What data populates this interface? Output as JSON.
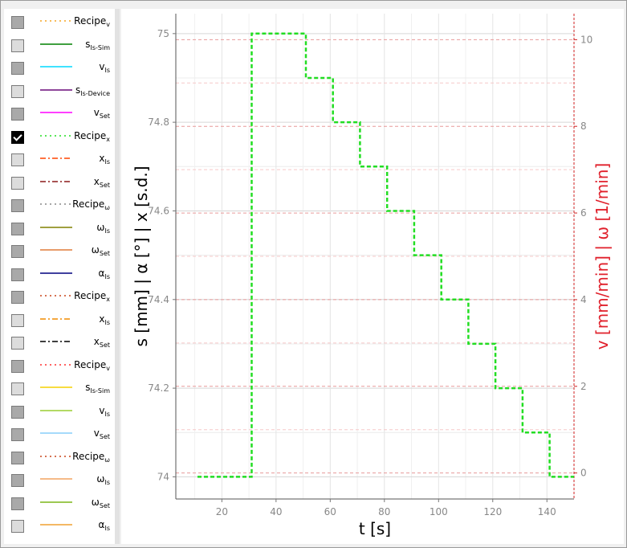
{
  "legend": {
    "items": [
      {
        "id": "recipe-v-1",
        "base": "Recipe",
        "sub": "v",
        "state": "dark",
        "color": "#f5a623",
        "dash": "dotted"
      },
      {
        "id": "s-is-sim-1",
        "base": "s",
        "sub": "Is-Sim",
        "state": "light",
        "color": "#008000",
        "dash": "solid"
      },
      {
        "id": "v-is-1",
        "base": "v",
        "sub": "Is",
        "state": "dark",
        "color": "#00d8ff",
        "dash": "solid"
      },
      {
        "id": "s-is-device",
        "base": "s",
        "sub": "Is-Device",
        "state": "light",
        "color": "#6a0a7a",
        "dash": "solid"
      },
      {
        "id": "v-set-1",
        "base": "v",
        "sub": "Set",
        "state": "dark",
        "color": "#ff00ff",
        "dash": "solid"
      },
      {
        "id": "recipe-x-1",
        "base": "Recipe",
        "sub": "x",
        "state": "checked",
        "color": "#22dd22",
        "dash": "dotted"
      },
      {
        "id": "x-is-1",
        "base": "x",
        "sub": "Is",
        "state": "light",
        "color": "#ff4500",
        "dash": "dashdot"
      },
      {
        "id": "x-set-1",
        "base": "x",
        "sub": "Set",
        "state": "light",
        "color": "#8b1a1a",
        "dash": "dashdot"
      },
      {
        "id": "recipe-w-1",
        "base": "Recipe",
        "sub": "ω",
        "state": "dark",
        "color": "#888888",
        "dash": "dotted"
      },
      {
        "id": "w-is-1",
        "base": "ω",
        "sub": "Is",
        "state": "dark",
        "color": "#808000",
        "dash": "solid"
      },
      {
        "id": "w-set-1",
        "base": "ω",
        "sub": "Set",
        "state": "dark",
        "color": "#e07b39",
        "dash": "solid"
      },
      {
        "id": "a-is-1",
        "base": "α",
        "sub": "Is",
        "state": "dark",
        "color": "#00007f",
        "dash": "solid"
      },
      {
        "id": "recipe-x-2",
        "base": "Recipe",
        "sub": "x",
        "state": "dark",
        "color": "#c8441a",
        "dash": "dotted"
      },
      {
        "id": "x-is-2",
        "base": "x",
        "sub": "Is",
        "state": "light",
        "color": "#f08c00",
        "dash": "dashdot"
      },
      {
        "id": "x-set-2",
        "base": "x",
        "sub": "Set",
        "state": "light",
        "color": "#000000",
        "dash": "dashdot"
      },
      {
        "id": "recipe-v-2",
        "base": "Recipe",
        "sub": "v",
        "state": "dark",
        "color": "#ff3030",
        "dash": "dotted"
      },
      {
        "id": "s-is-sim-2",
        "base": "s",
        "sub": "Is-Sim",
        "state": "light",
        "color": "#f5d000",
        "dash": "solid"
      },
      {
        "id": "v-is-2",
        "base": "v",
        "sub": "Is",
        "state": "dark",
        "color": "#9acd32",
        "dash": "solid"
      },
      {
        "id": "v-set-2",
        "base": "v",
        "sub": "Set",
        "state": "dark",
        "color": "#87cefa",
        "dash": "solid"
      },
      {
        "id": "recipe-w-2",
        "base": "Recipe",
        "sub": "ω",
        "state": "dark",
        "color": "#c8441a",
        "dash": "dotted"
      },
      {
        "id": "w-is-2",
        "base": "ω",
        "sub": "Is",
        "state": "dark",
        "color": "#f4a460",
        "dash": "solid"
      },
      {
        "id": "w-set-2",
        "base": "ω",
        "sub": "Set",
        "state": "dark",
        "color": "#7cb518",
        "dash": "solid"
      },
      {
        "id": "a-is-2",
        "base": "α",
        "sub": "Is",
        "state": "light",
        "color": "#f0a030",
        "dash": "solid"
      }
    ]
  },
  "chart_data": {
    "type": "line",
    "xlabel": "t [s]",
    "ylabel_left": "s [mm] | α [°] | x [s.d.]",
    "ylabel_right": "v [mm/min] | ω [1/min]",
    "xlim": [
      3,
      150
    ],
    "x_ticks": [
      20,
      40,
      60,
      80,
      100,
      120,
      140
    ],
    "ylim_left": [
      73.95,
      75.045
    ],
    "y_ticks_left": [
      74,
      74.2,
      74.4,
      74.6,
      74.8,
      75
    ],
    "ylim_right": [
      -0.6,
      10.6
    ],
    "y_ticks_right": [
      0,
      2,
      4,
      6,
      8,
      10
    ],
    "grid": true,
    "series": [
      {
        "name": "Recipe",
        "axis": "left",
        "color": "#22dd22",
        "style": "dashed",
        "step": true,
        "x": [
          11,
          31,
          31,
          51,
          51,
          61,
          61,
          71,
          71,
          81,
          81,
          91,
          91,
          101,
          101,
          111,
          111,
          121,
          121,
          131,
          131,
          141,
          141,
          150
        ],
        "y": [
          74,
          74,
          75,
          75,
          74.9,
          74.9,
          74.8,
          74.8,
          74.7,
          74.7,
          74.6,
          74.6,
          74.5,
          74.5,
          74.4,
          74.4,
          74.3,
          74.3,
          74.2,
          74.2,
          74.1,
          74.1,
          74,
          74
        ]
      }
    ]
  }
}
